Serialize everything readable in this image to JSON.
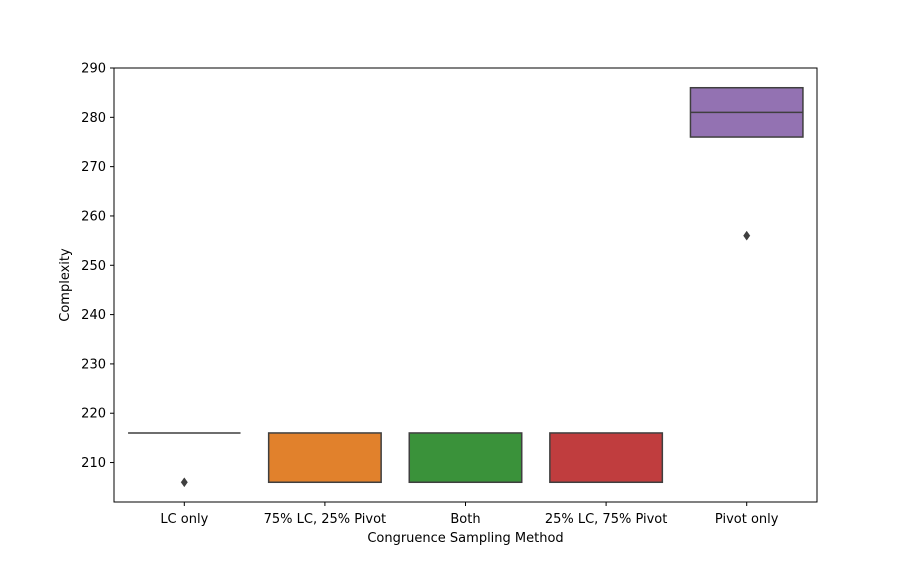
{
  "chart_data": {
    "type": "box",
    "xlabel": "Congruence Sampling Method",
    "ylabel": "Complexity",
    "ylim": [
      202,
      290
    ],
    "yticks": [
      210,
      220,
      230,
      240,
      250,
      260,
      270,
      280,
      290
    ],
    "grid": false,
    "categories": [
      "LC only",
      "75% LC, 25% Pivot",
      "Both",
      "25% LC, 75% Pivot",
      "Pivot only"
    ],
    "boxes": [
      {
        "category": "LC only",
        "q1": 216,
        "median": 216,
        "q3": 216,
        "whisker_low": 216,
        "whisker_high": 216,
        "outliers": [
          206
        ],
        "color": "#3274a1"
      },
      {
        "category": "75% LC, 25% Pivot",
        "q1": 206,
        "median": 206,
        "q3": 216,
        "whisker_low": 206,
        "whisker_high": 216,
        "outliers": [],
        "color": "#e1812c"
      },
      {
        "category": "Both",
        "q1": 206,
        "median": 206,
        "q3": 216,
        "whisker_low": 206,
        "whisker_high": 216,
        "outliers": [],
        "color": "#3a923a"
      },
      {
        "category": "25% LC, 75% Pivot",
        "q1": 206,
        "median": 206,
        "q3": 216,
        "whisker_low": 206,
        "whisker_high": 216,
        "outliers": [],
        "color": "#c03d3e"
      },
      {
        "category": "Pivot only",
        "q1": 276,
        "median": 281,
        "q3": 286,
        "whisker_low": 276,
        "whisker_high": 286,
        "outliers": [
          256
        ],
        "color": "#9372b2"
      }
    ],
    "edge_color": "#3f3f3f"
  }
}
